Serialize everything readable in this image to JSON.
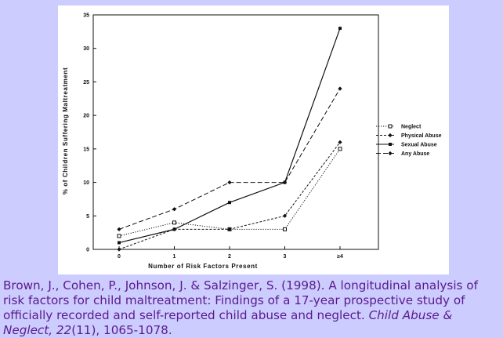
{
  "chart_data": {
    "type": "line",
    "title": "",
    "xlabel": "Number of Risk Factors Present",
    "ylabel": "% of Children Suffering Maltreatment",
    "categories": [
      "0",
      "1",
      "2",
      "3",
      "≥4"
    ],
    "ylim": [
      0,
      35
    ],
    "yticks": [
      0,
      5,
      10,
      15,
      20,
      25,
      30,
      35
    ],
    "grid": false,
    "legend_position": "right",
    "series": [
      {
        "name": "Neglect",
        "values": [
          2,
          4,
          3,
          3,
          15
        ],
        "line": "dotted",
        "marker": "open-square"
      },
      {
        "name": "Physical Abuse",
        "values": [
          0,
          3,
          3,
          5,
          16
        ],
        "line": "dashed",
        "marker": "diamond"
      },
      {
        "name": "Sexual Abuse",
        "values": [
          1,
          3,
          7,
          10,
          33
        ],
        "line": "solid",
        "marker": "filled-square"
      },
      {
        "name": "Any Abuse",
        "values": [
          3,
          6,
          10,
          10,
          24
        ],
        "line": "long-dashed",
        "marker": "diamond"
      }
    ]
  },
  "citation": {
    "text_before": "Brown, J., Cohen, P., Johnson, J. & Salzinger, S. (1998). A longitudinal analysis of risk factors for child maltreatment: Findings of a 17-year prospective study of officially recorded and self-reported child abuse and neglect. ",
    "journal": "Child Abuse & Neglect,",
    "space": " ",
    "volume": "22",
    "issue_pages": "(11), 1065-1078."
  }
}
